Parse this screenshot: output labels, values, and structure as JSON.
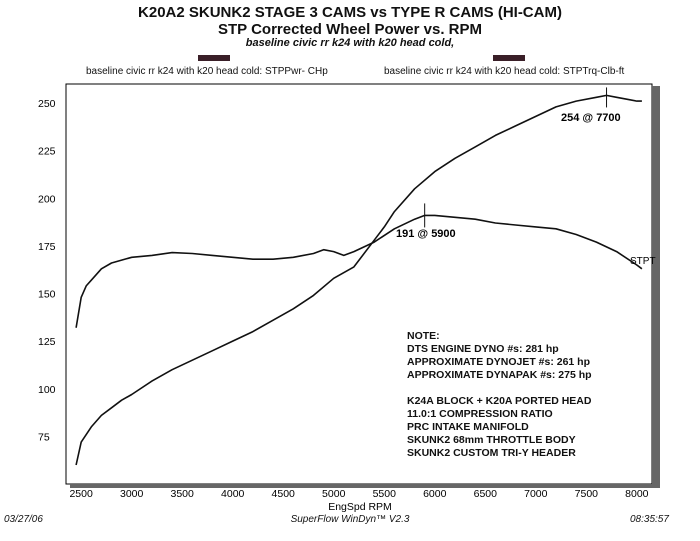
{
  "header": {
    "title": "K20A2 SKUNK2 STAGE 3 CAMS vs TYPE R CAMS (HI-CAM)",
    "subtitle": "STP Corrected Wheel Power vs. RPM",
    "baseline_note": "baseline civic rr k24 with k20 head cold,"
  },
  "legend": {
    "left_label": "baseline civic rr k24 with k20 head cold: STPPwr- CHp",
    "right_label": "baseline civic rr k24 with k20 head cold: STPTrq-Clb-ft"
  },
  "annotations": {
    "peak_power": "254 @ 7700",
    "peak_torque": "191 @ 5900",
    "series_end_label": "STPT"
  },
  "notes": [
    "NOTE:",
    "DTS ENGINE DYNO #s: 281 hp",
    "APPROXIMATE DYNOJET #s: 261 hp",
    "APPROXIMATE DYNAPAK #s: 275 hp",
    "K24A BLOCK + K20A PORTED HEAD",
    "11.0:1 COMPRESSION RATIO",
    "PRC INTAKE MANIFOLD",
    "SKUNK2 68mm THROTTLE BODY",
    "SKUNK2 CUSTOM TRI-Y HEADER"
  ],
  "footer": {
    "date": "03/27/06",
    "software": "SuperFlow WinDyn™ V2.3",
    "time": "08:35:57"
  },
  "chart_data": {
    "type": "line",
    "title": "STP Corrected Wheel Power vs. RPM",
    "xlabel": "EngSpd  RPM",
    "ylabel": "",
    "xlim": [
      2350,
      8150
    ],
    "ylim": [
      50,
      260
    ],
    "x_ticks": [
      2500,
      3000,
      3500,
      4000,
      4500,
      5000,
      5500,
      6000,
      6500,
      7000,
      7500,
      8000
    ],
    "y_ticks": [
      75,
      100,
      125,
      150,
      175,
      200,
      225,
      250
    ],
    "grid": false,
    "series": [
      {
        "name": "STPPwr- CHp",
        "points": [
          [
            2450,
            60
          ],
          [
            2500,
            72
          ],
          [
            2600,
            80
          ],
          [
            2700,
            86
          ],
          [
            2800,
            90
          ],
          [
            2900,
            94
          ],
          [
            3000,
            97
          ],
          [
            3200,
            104
          ],
          [
            3400,
            110
          ],
          [
            3600,
            115
          ],
          [
            3800,
            120
          ],
          [
            4000,
            125
          ],
          [
            4200,
            130
          ],
          [
            4400,
            136
          ],
          [
            4600,
            142
          ],
          [
            4800,
            149
          ],
          [
            5000,
            158
          ],
          [
            5200,
            164
          ],
          [
            5400,
            178
          ],
          [
            5500,
            185
          ],
          [
            5600,
            193
          ],
          [
            5800,
            205
          ],
          [
            6000,
            214
          ],
          [
            6200,
            221
          ],
          [
            6400,
            227
          ],
          [
            6600,
            233
          ],
          [
            6800,
            238
          ],
          [
            7000,
            243
          ],
          [
            7200,
            248
          ],
          [
            7400,
            251
          ],
          [
            7600,
            253
          ],
          [
            7700,
            254
          ],
          [
            7800,
            253
          ],
          [
            7900,
            252
          ],
          [
            8000,
            251
          ],
          [
            8050,
            251
          ]
        ]
      },
      {
        "name": "STPTrq-Clb-ft",
        "points": [
          [
            2450,
            132
          ],
          [
            2500,
            148
          ],
          [
            2550,
            154
          ],
          [
            2600,
            157
          ],
          [
            2700,
            163
          ],
          [
            2800,
            166
          ],
          [
            3000,
            169
          ],
          [
            3200,
            170
          ],
          [
            3400,
            171.5
          ],
          [
            3600,
            171
          ],
          [
            3800,
            170
          ],
          [
            4000,
            169
          ],
          [
            4200,
            168
          ],
          [
            4400,
            168
          ],
          [
            4600,
            169
          ],
          [
            4800,
            171
          ],
          [
            4900,
            173
          ],
          [
            5000,
            172
          ],
          [
            5100,
            170
          ],
          [
            5200,
            172
          ],
          [
            5400,
            177
          ],
          [
            5600,
            184
          ],
          [
            5800,
            189
          ],
          [
            5900,
            191
          ],
          [
            6000,
            191
          ],
          [
            6200,
            190
          ],
          [
            6400,
            189
          ],
          [
            6600,
            187
          ],
          [
            6800,
            186
          ],
          [
            7000,
            185
          ],
          [
            7200,
            184
          ],
          [
            7400,
            181
          ],
          [
            7600,
            177
          ],
          [
            7800,
            172
          ],
          [
            8000,
            165
          ],
          [
            8050,
            163
          ]
        ]
      }
    ]
  }
}
